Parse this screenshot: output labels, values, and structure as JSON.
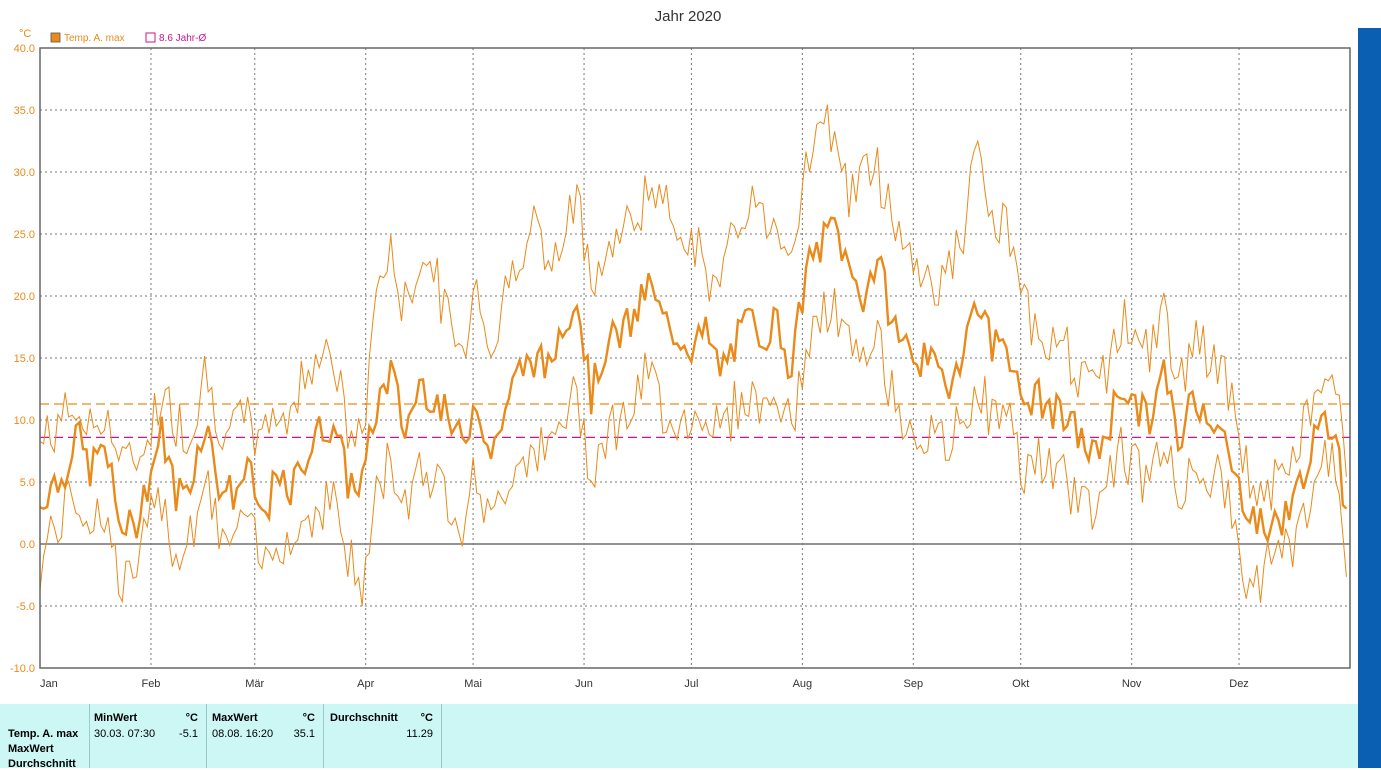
{
  "chart_data": {
    "type": "line",
    "title": "Jahr 2020",
    "unit_label": "°C",
    "ylim": [
      -10,
      40
    ],
    "yticks": [
      "-10.0",
      "-5.0",
      "0.0",
      "5.0",
      "10.0",
      "15.0",
      "20.0",
      "25.0",
      "30.0",
      "35.0",
      "40.0"
    ],
    "ytick_values": [
      -10,
      -5,
      0,
      5,
      10,
      15,
      20,
      25,
      30,
      35,
      40
    ],
    "months": [
      "Jan",
      "Feb",
      "Mär",
      "Apr",
      "Mai",
      "Jun",
      "Jul",
      "Aug",
      "Sep",
      "Okt",
      "Nov",
      "Dez"
    ],
    "grid": true,
    "legend": {
      "placement": "top-left",
      "items": [
        {
          "label": "Temp. A. max",
          "color": "#e98a1a"
        },
        {
          "label": "8.6 Jahr-Ø",
          "color": "#c8178f"
        }
      ]
    },
    "reference_lines": [
      {
        "name": "Durchschnitt",
        "value": 11.29,
        "color": "#e98a1a"
      },
      {
        "name": "8.6 Jahr-Ø",
        "value": 8.6,
        "color": "#c8178f"
      }
    ],
    "series": [
      {
        "name": "Temp. A. max",
        "color": "#e98a1a",
        "keypoints_doy": [
          0,
          3,
          6,
          10,
          14,
          18,
          22,
          26,
          30,
          34,
          38,
          42,
          46,
          50,
          54,
          58,
          62,
          66,
          70,
          74,
          78,
          82,
          86,
          90,
          94,
          98,
          102,
          106,
          110,
          114,
          118,
          122,
          126,
          130,
          134,
          138,
          142,
          146,
          150,
          154,
          158,
          162,
          166,
          170,
          174,
          178,
          182,
          186,
          190,
          194,
          198,
          202,
          206,
          210,
          214,
          218,
          222,
          226,
          230,
          234,
          238,
          242,
          246,
          250,
          254,
          258,
          262,
          266,
          270,
          274,
          278,
          282,
          286,
          290,
          294,
          298,
          302,
          306,
          310,
          314,
          318,
          322,
          326,
          330,
          334,
          338,
          342,
          346,
          350,
          354,
          358,
          362,
          365
        ],
        "mean": [
          3,
          5,
          5,
          9,
          6,
          8,
          2,
          1,
          5,
          9,
          4,
          5,
          10,
          5,
          4,
          6,
          2,
          5,
          4,
          7,
          9,
          10,
          5,
          5,
          11,
          14,
          9,
          13,
          12,
          10,
          8,
          12,
          7,
          11,
          14,
          15,
          14,
          18,
          20,
          12,
          16,
          17,
          18,
          21,
          18,
          17,
          16,
          17,
          14,
          16,
          18,
          17,
          18,
          14,
          22,
          24,
          26,
          22,
          20,
          23,
          18,
          16,
          15,
          14,
          13,
          16,
          20,
          16,
          17,
          11,
          12,
          11,
          10,
          9,
          7,
          9,
          13,
          11,
          10,
          14,
          8,
          12,
          11,
          9,
          5,
          3,
          1,
          2,
          3,
          7,
          9,
          10,
          2
        ],
        "upper": [
          8,
          9,
          10,
          11,
          9,
          11,
          7,
          6,
          9,
          12,
          10,
          9,
          14,
          10,
          9,
          10,
          8,
          11,
          10,
          14,
          16,
          15,
          9,
          8,
          21,
          23,
          19,
          23,
          22,
          18,
          15,
          22,
          15,
          20,
          24,
          26,
          22,
          24,
          28,
          22,
          23,
          25,
          26,
          29,
          27,
          26,
          25,
          22,
          20,
          25,
          28,
          26,
          26,
          24,
          31,
          33,
          34,
          28,
          30,
          30,
          27,
          24,
          22,
          21,
          22,
          25,
          32,
          25,
          26,
          19,
          18,
          17,
          16,
          14,
          12,
          14,
          18,
          17,
          15,
          19,
          12,
          17,
          15,
          14,
          10,
          5,
          4,
          5,
          6,
          11,
          12,
          13,
          5
        ],
        "lower": [
          -2,
          1,
          2,
          4,
          2,
          3,
          -3,
          -3,
          1,
          4,
          -1,
          1,
          5,
          1,
          0,
          2,
          -2,
          1,
          0,
          2,
          3,
          4,
          -1,
          -4,
          4,
          7,
          3,
          7,
          5,
          4,
          2,
          6,
          1,
          5,
          7,
          8,
          7,
          10,
          12,
          6,
          9,
          10,
          11,
          14,
          11,
          10,
          10,
          11,
          9,
          11,
          12,
          11,
          12,
          9,
          16,
          18,
          19,
          16,
          14,
          17,
          12,
          10,
          9,
          8,
          8,
          10,
          13,
          10,
          11,
          6,
          7,
          6,
          5,
          4,
          3,
          5,
          8,
          6,
          5,
          9,
          3,
          7,
          6,
          5,
          1,
          -4,
          -2,
          -1,
          0,
          3,
          6,
          7,
          -1
        ]
      }
    ]
  },
  "stats": {
    "headers": {
      "min": "MinWert",
      "min_unit": "°C",
      "max": "MaxWert",
      "max_unit": "°C",
      "avg": "Durchschnitt",
      "avg_unit": "°C"
    },
    "row_labels": [
      "Temp. A. max",
      "MaxWert",
      "Durchschnitt"
    ],
    "min_date": "30.03.  07:30",
    "min_value": "-5.1",
    "max_date": "08.08.  16:20",
    "max_value": "35.1",
    "avg_value": "11.29"
  }
}
